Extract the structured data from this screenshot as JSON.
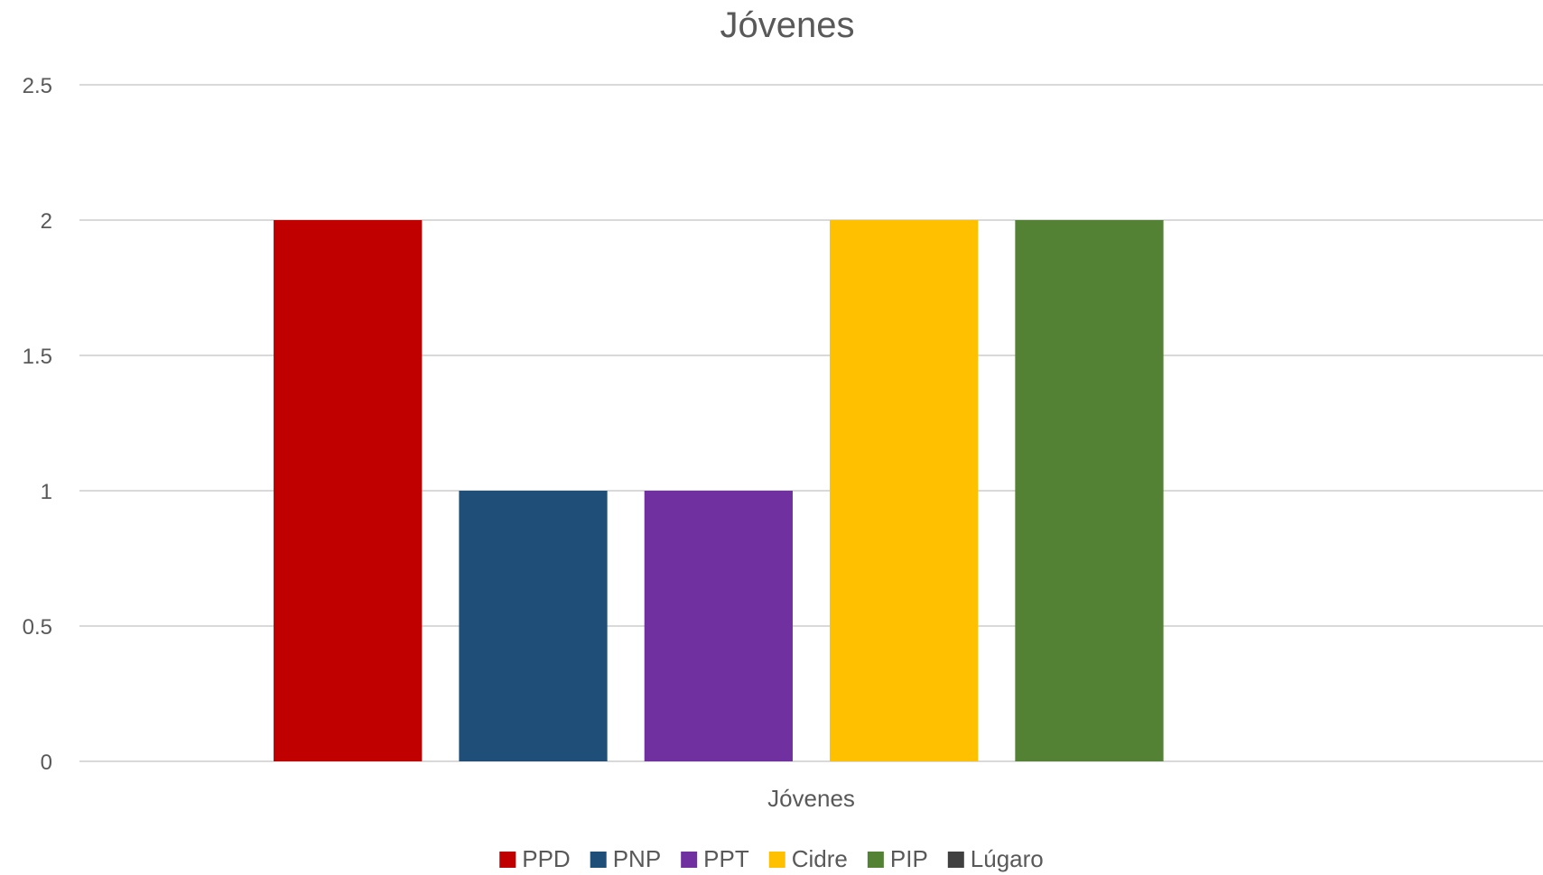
{
  "chart_data": {
    "type": "bar",
    "title": "Jóvenes",
    "categories": [
      "Jóvenes"
    ],
    "series": [
      {
        "name": "PPD",
        "values": [
          2
        ],
        "color": "#c00000"
      },
      {
        "name": "PNP",
        "values": [
          1
        ],
        "color": "#1f4e79"
      },
      {
        "name": "PPT",
        "values": [
          1
        ],
        "color": "#7030a0"
      },
      {
        "name": "Cidre",
        "values": [
          2
        ],
        "color": "#ffc000"
      },
      {
        "name": "PIP",
        "values": [
          2
        ],
        "color": "#548235"
      },
      {
        "name": "Lúgaro",
        "values": [
          0
        ],
        "color": "#404040"
      }
    ],
    "yticks": [
      "0",
      "0.5",
      "1",
      "1.5",
      "2",
      "2.5"
    ],
    "ylim": [
      0,
      2.5
    ],
    "xlabel": "",
    "ylabel": "",
    "grid": true,
    "legend_position": "bottom"
  }
}
